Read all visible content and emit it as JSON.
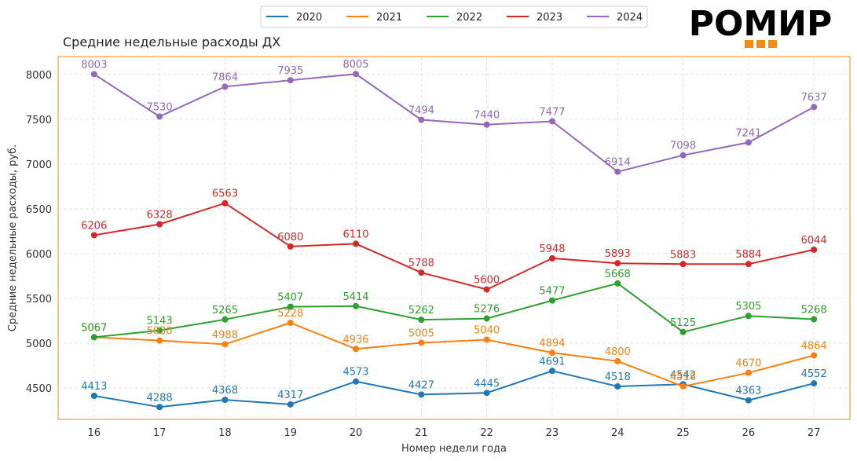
{
  "logo": {
    "text": "РОМИР",
    "accent_color": "#f28c13"
  },
  "chart_data": {
    "type": "line",
    "title": "Средние недельные расходы ДХ",
    "xlabel": "Номер недели года",
    "ylabel": "Средние недельные расходы, руб.",
    "x": [
      16,
      17,
      18,
      19,
      20,
      21,
      22,
      23,
      24,
      25,
      26,
      27
    ],
    "ylim": [
      4150,
      8200
    ],
    "yticks": [
      4500,
      5000,
      5500,
      6000,
      6500,
      7000,
      7500,
      8000
    ],
    "grid": true,
    "legend_position": "top-center",
    "frame_color": "#f28c13",
    "series": [
      {
        "name": "2020",
        "color": "#1f77b4",
        "values": [
          4413,
          4288,
          4368,
          4317,
          4573,
          4427,
          4445,
          4691,
          4518,
          4542,
          4363,
          4552
        ]
      },
      {
        "name": "2021",
        "color": "#ff7f0e",
        "values": [
          5067,
          5030,
          4988,
          5228,
          4936,
          5005,
          5040,
          4894,
          4800,
          4518,
          4670,
          4864
        ]
      },
      {
        "name": "2022",
        "color": "#2ca02c",
        "values": [
          5067,
          5143,
          5265,
          5407,
          5414,
          5262,
          5276,
          5477,
          5668,
          5125,
          5305,
          5268
        ]
      },
      {
        "name": "2023",
        "color": "#d62728",
        "values": [
          6206,
          6328,
          6563,
          6080,
          6110,
          5788,
          5600,
          5948,
          5893,
          5883,
          5884,
          6044
        ]
      },
      {
        "name": "2024",
        "color": "#9467bd",
        "values": [
          8003,
          7530,
          7864,
          7935,
          8005,
          7494,
          7440,
          7477,
          6914,
          7098,
          7241,
          7637
        ]
      }
    ]
  }
}
